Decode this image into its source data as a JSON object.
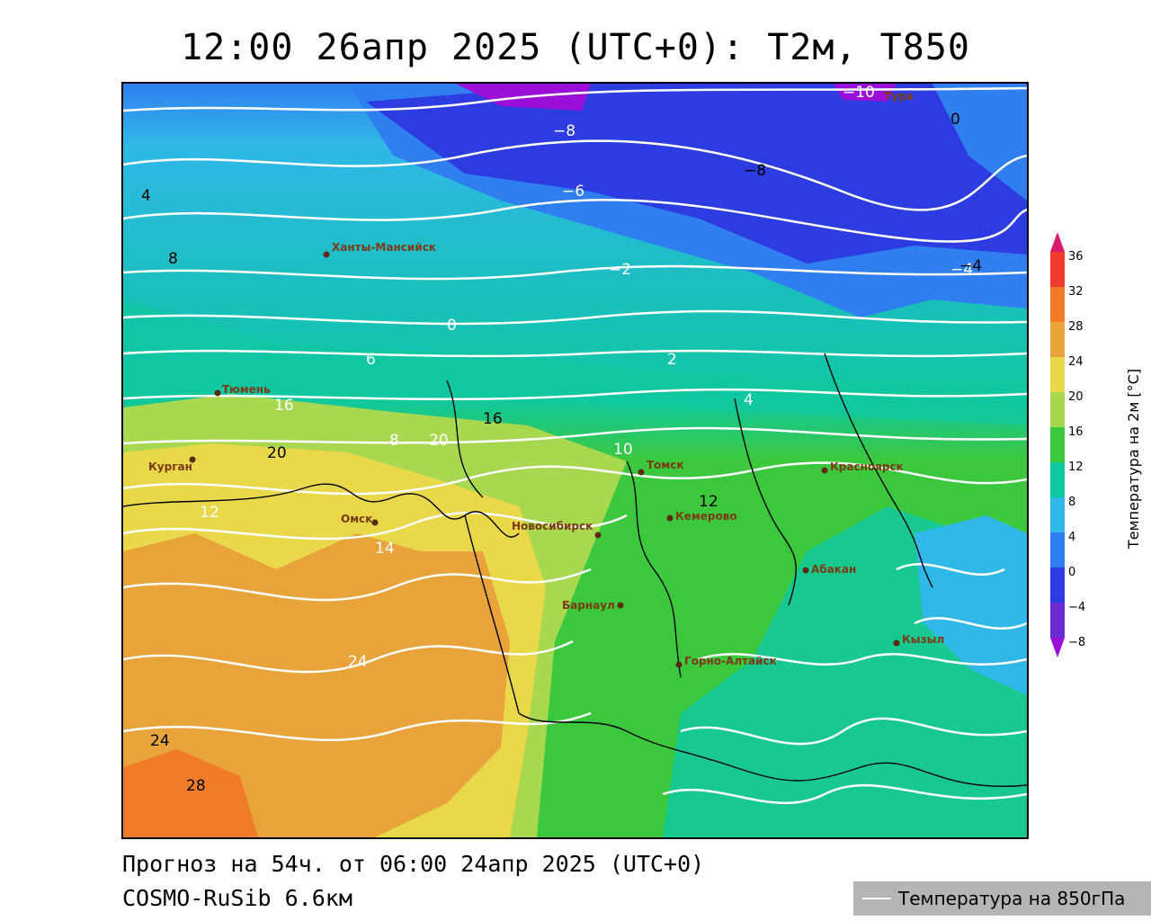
{
  "title": "12:00 26апр 2025 (UTC+0): T2м, T850",
  "footer": {
    "forecast": "Прогноз на 54ч. от 06:00 24апр 2025 (UTC+0)",
    "model": "COSMO-RuSib 6.6км",
    "t850_legend": "Температура на 850гПа"
  },
  "colorbar": {
    "title": "Температура на 2м [°C]",
    "ticks": [
      "36",
      "32",
      "28",
      "24",
      "20",
      "16",
      "12",
      "8",
      "4",
      "0",
      "−4",
      "−8"
    ],
    "colors": [
      "#d81a6e",
      "#ef3b2c",
      "#f07c2a",
      "#e8a33a",
      "#e8d84a",
      "#a8d850",
      "#3cc83c",
      "#10c8a0",
      "#30b8e8",
      "#2f7ff0",
      "#2c3ce0",
      "#6a2cd0",
      "#9a10d8"
    ]
  },
  "cities": [
    {
      "name": "Ханты-Мансийск"
    },
    {
      "name": "Тюмень"
    },
    {
      "name": "Курган"
    },
    {
      "name": "Омск"
    },
    {
      "name": "Новосибирск"
    },
    {
      "name": "Томск"
    },
    {
      "name": "Кемерово"
    },
    {
      "name": "Барнаул"
    },
    {
      "name": "Горно-Алтайск"
    },
    {
      "name": "Абакан"
    },
    {
      "name": "Красноярск"
    },
    {
      "name": "Кызыл"
    },
    {
      "name": "Тура"
    }
  ],
  "t850_labels": [
    "−10",
    "−8",
    "−6",
    "−4",
    "−2",
    "0",
    "2",
    "4",
    "6",
    "8",
    "10",
    "12",
    "14",
    "16",
    "20",
    "24"
  ],
  "t2m_samples": [
    "28",
    "24",
    "20",
    "16",
    "12",
    "8",
    "4",
    "0",
    "−4",
    "−8"
  ]
}
